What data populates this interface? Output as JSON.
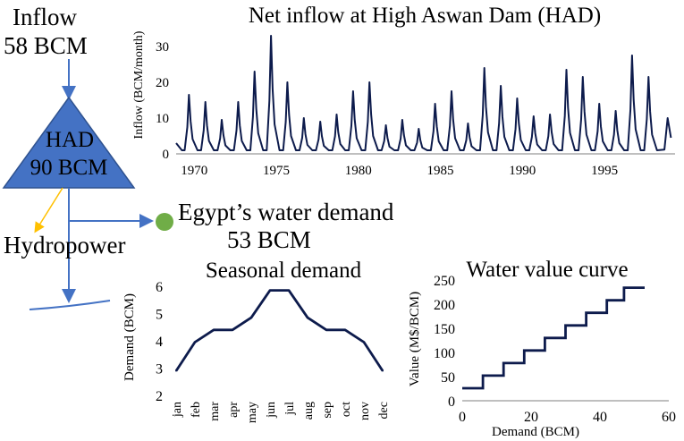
{
  "diagram": {
    "inflow_label": "Inflow",
    "inflow_value": "58 BCM",
    "reservoir_name": "HAD",
    "reservoir_capacity": "90 BCM",
    "hydropower_label": "Hydropower",
    "demand_label": "Egypt’s water demand",
    "demand_value": "53 BCM",
    "colors": {
      "triangle_fill": "#4472c4",
      "triangle_stroke": "#2f528f",
      "arrow": "#4472c4",
      "hydro_arrow": "#ffc000",
      "demand_node": "#70ad47",
      "series": "#0d1b4c"
    }
  },
  "chart_data": [
    {
      "id": "net-inflow",
      "type": "line",
      "title": "Net inflow at High Aswan Dam (HAD)",
      "xlabel": "",
      "ylabel": "Inflow (BCM/month)",
      "xlim": [
        1968.9,
        1999.3
      ],
      "ylim": [
        0,
        35
      ],
      "xticks": [
        1970,
        1975,
        1980,
        1985,
        1990,
        1995
      ],
      "yticks": [
        0,
        10,
        20,
        30
      ],
      "annual_peaks": [
        {
          "year": 1969,
          "peak": 16.5
        },
        {
          "year": 1970,
          "peak": 14.5
        },
        {
          "year": 1971,
          "peak": 9.5
        },
        {
          "year": 1972,
          "peak": 14.5
        },
        {
          "year": 1973,
          "peak": 23
        },
        {
          "year": 1974,
          "peak": 33
        },
        {
          "year": 1975,
          "peak": 20
        },
        {
          "year": 1976,
          "peak": 10
        },
        {
          "year": 1977,
          "peak": 9
        },
        {
          "year": 1978,
          "peak": 11
        },
        {
          "year": 1979,
          "peak": 17.5
        },
        {
          "year": 1980,
          "peak": 20
        },
        {
          "year": 1981,
          "peak": 8
        },
        {
          "year": 1982,
          "peak": 9.5
        },
        {
          "year": 1983,
          "peak": 7
        },
        {
          "year": 1984,
          "peak": 14
        },
        {
          "year": 1985,
          "peak": 17.5
        },
        {
          "year": 1986,
          "peak": 8.5
        },
        {
          "year": 1987,
          "peak": 24
        },
        {
          "year": 1988,
          "peak": 19
        },
        {
          "year": 1989,
          "peak": 15.5
        },
        {
          "year": 1990,
          "peak": 10.5
        },
        {
          "year": 1991,
          "peak": 11
        },
        {
          "year": 1992,
          "peak": 23.5
        },
        {
          "year": 1993,
          "peak": 21.5
        },
        {
          "year": 1994,
          "peak": 14
        },
        {
          "year": 1995,
          "peak": 12
        },
        {
          "year": 1996,
          "peak": 27.5
        },
        {
          "year": 1997,
          "peak": 21.5
        }
      ],
      "end_value": 4.5
    },
    {
      "id": "seasonal-demand",
      "type": "line",
      "title": "Seasonal demand",
      "xlabel": "",
      "ylabel": "Demand (BCM)",
      "ylim": [
        2,
        6
      ],
      "yticks": [
        2,
        3,
        4,
        5,
        6
      ],
      "categories": [
        "jan",
        "feb",
        "mar",
        "apr",
        "may",
        "jun",
        "jul",
        "aug",
        "sep",
        "oct",
        "nov",
        "dec"
      ],
      "values": [
        2.9,
        3.95,
        4.4,
        4.4,
        4.85,
        5.85,
        5.85,
        4.85,
        4.4,
        4.4,
        3.95,
        2.9
      ]
    },
    {
      "id": "water-value",
      "type": "line",
      "title": "Water value curve",
      "xlabel": "Demand (BCM)",
      "ylabel": "Value (M$/BCM)",
      "xlim": [
        0,
        60
      ],
      "ylim": [
        0,
        250
      ],
      "xticks": [
        0,
        20,
        40,
        60
      ],
      "yticks": [
        0,
        50,
        100,
        150,
        200,
        250
      ],
      "steps": [
        {
          "from": 0,
          "to": 6,
          "value": 26
        },
        {
          "from": 6,
          "to": 12,
          "value": 52
        },
        {
          "from": 12,
          "to": 18,
          "value": 78
        },
        {
          "from": 18,
          "to": 24,
          "value": 104
        },
        {
          "from": 24,
          "to": 30,
          "value": 130
        },
        {
          "from": 30,
          "to": 36,
          "value": 156
        },
        {
          "from": 36,
          "to": 42,
          "value": 182
        },
        {
          "from": 42,
          "to": 47,
          "value": 208
        },
        {
          "from": 47,
          "to": 53,
          "value": 234
        }
      ]
    }
  ]
}
